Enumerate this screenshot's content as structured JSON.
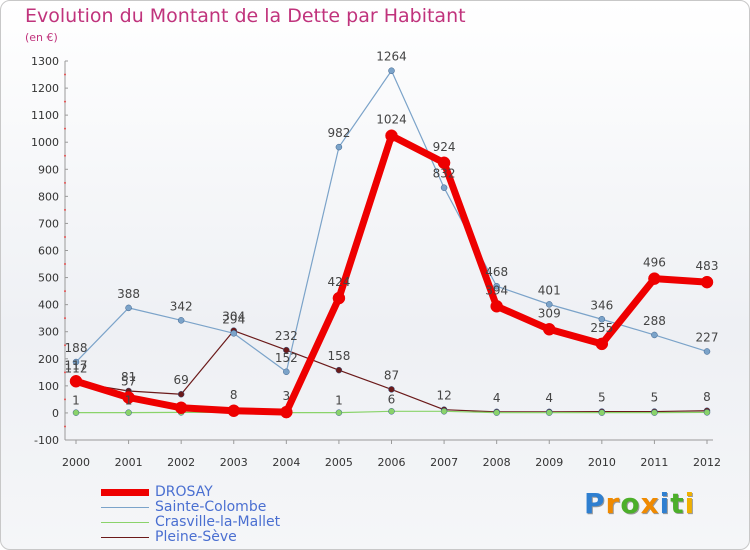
{
  "header": {
    "title": "Evolution du Montant de la Dette par Habitant",
    "unit": "(en €)"
  },
  "brand": {
    "letters": [
      "P",
      "r",
      "o",
      "x",
      "i",
      "t",
      "i"
    ],
    "colors": [
      "#2f7fd0",
      "#f08a00",
      "#4caf2a",
      "#f08a00",
      "#2f7fd0",
      "#4caf2a",
      "#f0b000"
    ]
  },
  "chart_data": {
    "type": "line",
    "title": "Evolution du Montant de la Dette par Habitant",
    "subtitle": "(en €)",
    "x": [
      "2000",
      "2001",
      "2002",
      "2003",
      "2004",
      "2005",
      "2006",
      "2007",
      "2008",
      "2009",
      "2010",
      "2011",
      "2012"
    ],
    "ylim": [
      -100,
      1300
    ],
    "yticks": [
      -100,
      0,
      100,
      200,
      300,
      400,
      500,
      600,
      700,
      800,
      900,
      1000,
      1100,
      1200,
      1300
    ],
    "grid": false,
    "legend": "bottom-left",
    "series": [
      {
        "name": "Pleine-Sève",
        "color": "#6b1a1a",
        "line_width": 1.2,
        "marker_radius": 3,
        "values": [
          112,
          81,
          69,
          304,
          232,
          158,
          87,
          12,
          4,
          4,
          5,
          5,
          8
        ],
        "labels": [
          "112",
          "81",
          "69",
          "304",
          "232",
          "158",
          "87",
          "12",
          "4",
          "4",
          "5",
          "5",
          "8"
        ]
      },
      {
        "name": "Sainte-Colombe",
        "color": "#7ba3c9",
        "line_width": 1.2,
        "marker_radius": 3,
        "values": [
          188,
          388,
          342,
          294,
          152,
          982,
          1264,
          832,
          468,
          401,
          346,
          288,
          227
        ],
        "labels": [
          "188",
          "388",
          "342",
          "294",
          "152",
          "982",
          "1264",
          "832",
          "468",
          "401",
          "346",
          "288",
          "227"
        ]
      },
      {
        "name": "Crasville-la-Mallet",
        "color": "#8ad36a",
        "line_width": 1.2,
        "marker_radius": 3,
        "values": [
          1,
          1,
          2,
          2,
          1,
          1,
          6,
          6,
          1,
          1,
          1,
          1,
          2
        ],
        "labels": [
          "1",
          "1",
          "",
          "",
          "",
          "1",
          "6",
          "",
          "",
          "",
          "",
          "",
          ""
        ]
      },
      {
        "name": "DROSAY",
        "color": "#ee0000",
        "line_width": 7,
        "marker_radius": 6,
        "values": [
          117,
          57,
          19,
          8,
          3,
          424,
          1024,
          924,
          394,
          309,
          255,
          496,
          483
        ],
        "labels": [
          "117",
          "57",
          "",
          "8",
          "3",
          "424",
          "1024",
          "924",
          "394",
          "309",
          "255",
          "496",
          "483"
        ]
      }
    ],
    "legend_entries": [
      {
        "name": "DROSAY",
        "color": "#ee0000",
        "width": 7
      },
      {
        "name": "Sainte-Colombe",
        "color": "#7ba3c9",
        "width": 1.5
      },
      {
        "name": "Crasville-la-Mallet",
        "color": "#8ad36a",
        "width": 1.5
      },
      {
        "name": "Pleine-Sève",
        "color": "#6b1a1a",
        "width": 1.5
      }
    ]
  }
}
